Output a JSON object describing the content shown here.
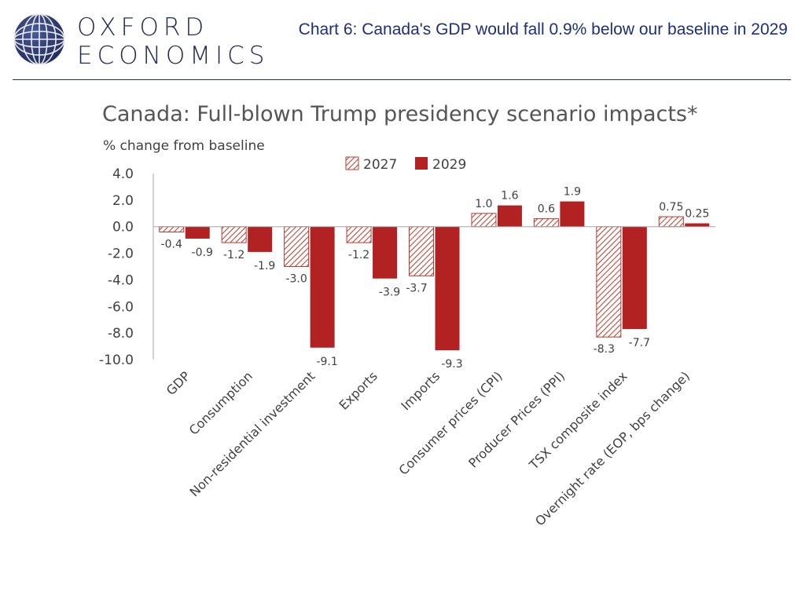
{
  "header": {
    "logo_line1": "OXFORD",
    "logo_line2": "ECONOMICS",
    "headline": "Chart 6: Canada's GDP would fall 0.9% below our baseline in 2029"
  },
  "colors": {
    "series_2027_stroke": "#c0392b",
    "series_2029_fill": "#b22222",
    "brand_navy": "#1f2a5a"
  },
  "chart_data": {
    "type": "bar",
    "title": "Canada: Full-blown Trump presidency scenario impacts*",
    "ylabel": "% change from baseline",
    "ylim": [
      -10,
      4
    ],
    "yticks": [
      "4.0",
      "2.0",
      "0.0",
      "-2.0",
      "-4.0",
      "-6.0",
      "-8.0",
      "-10.0"
    ],
    "legend_position": "top",
    "categories": [
      "GDP",
      "Consumption",
      "Non-residential investment",
      "Exports",
      "Imports",
      "Consumer prices (CPI)",
      "Producer Prices (PPI)",
      "TSX composite index",
      "Overnight rate (EOP, bps change)"
    ],
    "series": [
      {
        "name": "2027",
        "pattern": "hatched",
        "values": [
          -0.4,
          -1.2,
          -3.0,
          -1.2,
          -3.7,
          1.0,
          0.6,
          -8.3,
          0.75
        ],
        "labels": [
          "-0.4",
          "-1.2",
          "-3.0",
          "-1.2",
          "-3.7",
          "1.0",
          "0.6",
          "-8.3",
          "0.75"
        ]
      },
      {
        "name": "2029",
        "pattern": "solid",
        "values": [
          -0.9,
          -1.9,
          -9.1,
          -3.9,
          -9.3,
          1.6,
          1.9,
          -7.7,
          0.25
        ],
        "labels": [
          "-0.9",
          "-1.9",
          "-9.1",
          "-3.9",
          "-9.3",
          "1.6",
          "1.9",
          "-7.7",
          "0.25"
        ]
      }
    ]
  }
}
